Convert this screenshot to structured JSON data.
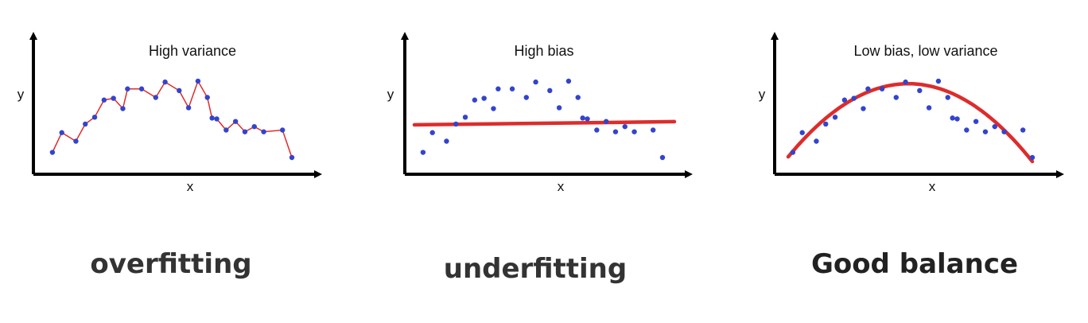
{
  "chart_data": [
    {
      "type": "scatter",
      "title": "High variance",
      "xlabel": "x",
      "ylabel": "y",
      "fit": "interpolating-line",
      "x": [
        0.5,
        1.5,
        3.0,
        4.0,
        5.0,
        6.0,
        7.0,
        8.0,
        8.5,
        10.0,
        11.5,
        12.5,
        14.0,
        15.0,
        16.0,
        17.0,
        17.5,
        18.0,
        19.0,
        20.0,
        21.0,
        22.0,
        23.0,
        25.0,
        26.0
      ],
      "y": [
        2.0,
        4.3,
        3.3,
        5.3,
        6.1,
        8.1,
        8.3,
        7.1,
        9.4,
        9.4,
        8.4,
        10.2,
        9.2,
        7.2,
        10.3,
        8.4,
        6.0,
        5.9,
        4.6,
        5.6,
        4.4,
        5.0,
        4.4,
        4.6,
        1.4
      ],
      "fit_color": "#dd2c2c",
      "point_color": "#3344cc"
    },
    {
      "type": "scatter",
      "title": "High bias",
      "xlabel": "x",
      "ylabel": "y",
      "fit": "horizontal-line",
      "fit_value": 5.3,
      "x": [
        0.5,
        1.5,
        3.0,
        4.0,
        5.0,
        6.0,
        7.0,
        8.0,
        8.5,
        10.0,
        11.5,
        12.5,
        14.0,
        15.0,
        16.0,
        17.0,
        17.5,
        18.0,
        19.0,
        20.0,
        21.0,
        22.0,
        23.0,
        25.0,
        26.0
      ],
      "y": [
        2.0,
        4.3,
        3.3,
        5.3,
        6.1,
        8.1,
        8.3,
        7.1,
        9.4,
        9.4,
        8.4,
        10.2,
        9.2,
        7.2,
        10.3,
        8.4,
        6.0,
        5.9,
        4.6,
        5.6,
        4.4,
        5.0,
        4.4,
        4.6,
        1.4
      ],
      "fit_color": "#dd2c2c",
      "point_color": "#3344cc"
    },
    {
      "type": "scatter",
      "title": "Low bias, low variance",
      "xlabel": "x",
      "ylabel": "y",
      "fit": "quadratic",
      "x": [
        0.5,
        1.5,
        3.0,
        4.0,
        5.0,
        6.0,
        7.0,
        8.0,
        8.5,
        10.0,
        11.5,
        12.5,
        14.0,
        15.0,
        16.0,
        17.0,
        17.5,
        18.0,
        19.0,
        20.0,
        21.0,
        22.0,
        23.0,
        25.0,
        26.0
      ],
      "y": [
        2.0,
        4.3,
        3.3,
        5.3,
        6.1,
        8.1,
        8.3,
        7.1,
        9.4,
        9.4,
        8.4,
        10.2,
        9.2,
        7.2,
        10.3,
        8.4,
        6.0,
        5.9,
        4.6,
        5.6,
        4.4,
        5.0,
        4.4,
        4.6,
        1.4
      ],
      "fit_color": "#dd2c2c",
      "point_color": "#3344cc"
    }
  ],
  "labels": [
    "overfitting",
    "underfitting",
    "Good balance"
  ]
}
